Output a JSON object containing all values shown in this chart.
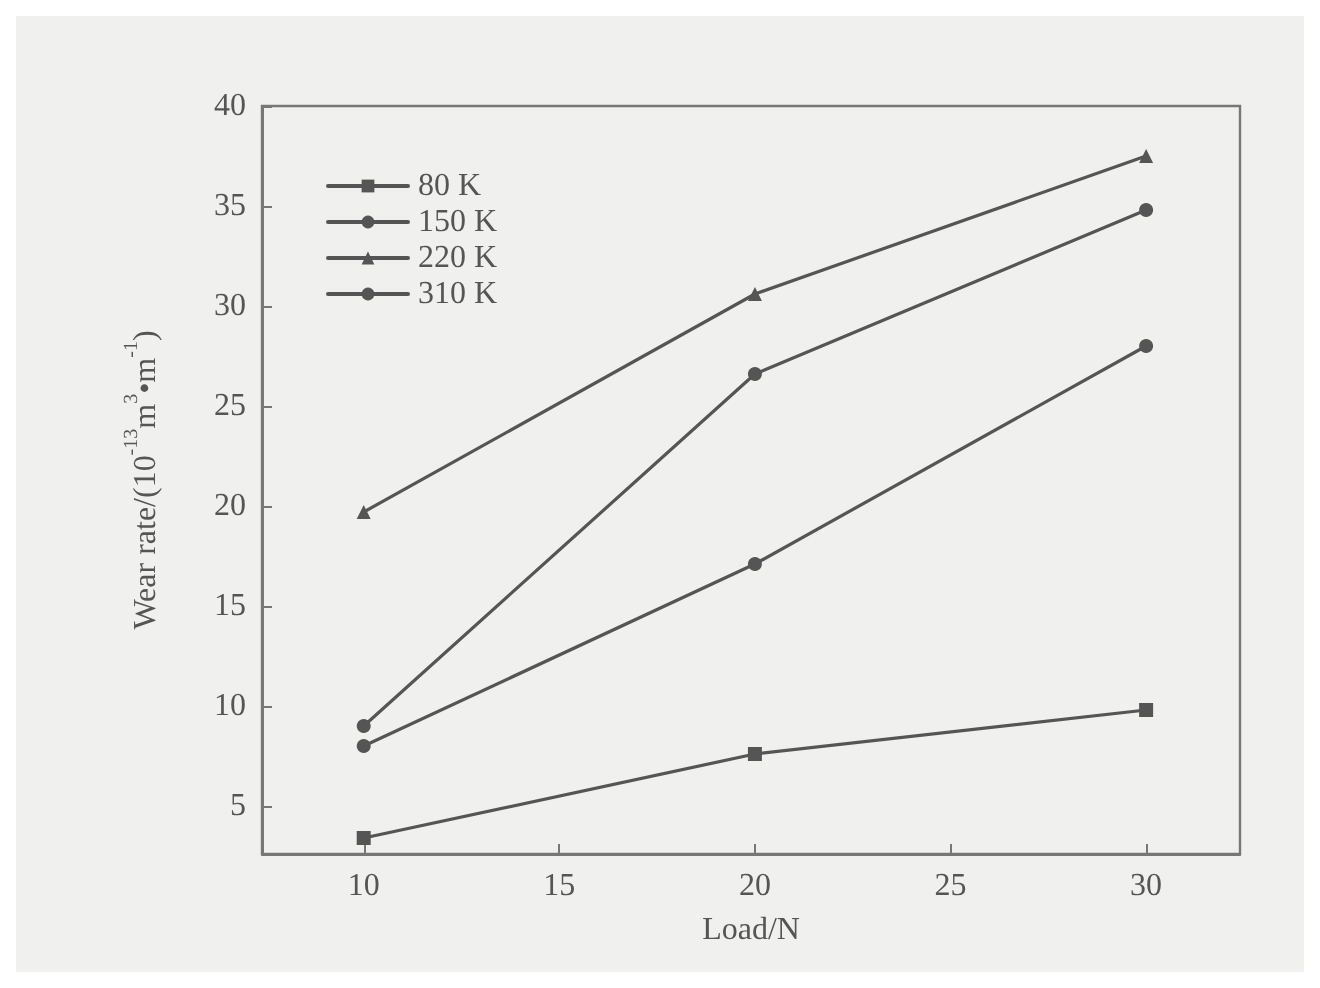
{
  "chart_data": {
    "type": "line",
    "xlabel": "Load/N",
    "ylabel": "Wear rate/(10$^{-13}$m$^{3}$•m$^{-1}$)",
    "x": [
      10,
      20,
      30
    ],
    "series": [
      {
        "name": "80 K",
        "color": "#555555",
        "values": [
          3.4,
          7.6,
          9.8
        ],
        "marker": "square"
      },
      {
        "name": "150 K",
        "color": "#555555",
        "values": [
          9,
          26.6,
          34.8
        ],
        "marker": "circle"
      },
      {
        "name": "220 K",
        "color": "#555555",
        "values": [
          19.7,
          30.6,
          37.5
        ],
        "marker": "triangle"
      },
      {
        "name": "310 K",
        "color": "#555555",
        "values": [
          8,
          17.1,
          28
        ],
        "marker": "circle"
      }
    ],
    "xlim": [
      7.4,
      32.4
    ],
    "xticks": [
      10,
      15,
      20,
      25,
      30
    ],
    "ylim": [
      2.6,
      40
    ],
    "yticks": [
      5,
      10,
      15,
      20,
      25,
      30,
      35,
      40
    ],
    "grid": false,
    "legend": "top left",
    "line_style": "solid"
  }
}
